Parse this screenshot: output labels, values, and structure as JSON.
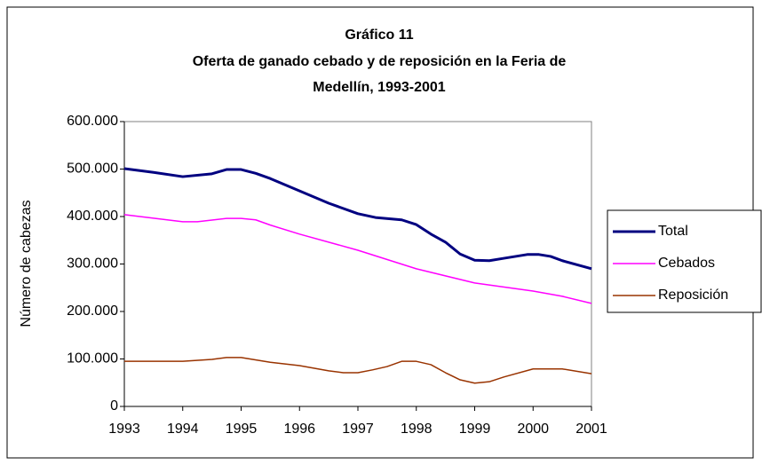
{
  "chart_data": {
    "type": "line",
    "title": [
      "Gráfico 11",
      "Oferta de ganado cebado y de reposición en la Feria de",
      "Medellín, 1993-2001"
    ],
    "ylabel": "Número de cabezas",
    "xlim": [
      1993,
      2001
    ],
    "xticks": [
      1993,
      1994,
      1995,
      1996,
      1997,
      1998,
      1999,
      2000,
      2001
    ],
    "ylim": [
      0,
      600000
    ],
    "yticks": [
      0,
      {
        "value": 100000,
        "label": "100.000"
      },
      {
        "value": 200000,
        "label": "200.000"
      },
      {
        "value": 300000,
        "label": "300.000"
      },
      {
        "value": 400000,
        "label": "400.000"
      },
      {
        "value": 500000,
        "label": "500.000"
      },
      {
        "value": 600000,
        "label": "600.000"
      }
    ],
    "legend": "right",
    "series": [
      {
        "name": "Total",
        "color": "#000080",
        "x": [
          1993,
          1993.5,
          1994,
          1994.5,
          1994.75,
          1995,
          1995.25,
          1995.5,
          1996,
          1996.5,
          1997,
          1997.3,
          1997.75,
          1998,
          1998.25,
          1998.5,
          1998.75,
          1999,
          1999.25,
          1999.5,
          1999.9,
          2000.1,
          2000.3,
          2000.5,
          2001
        ],
        "values": [
          501000,
          493000,
          484000,
          490000,
          499000,
          499000,
          491000,
          480000,
          454000,
          428000,
          406000,
          398000,
          393000,
          383000,
          363000,
          346000,
          321000,
          308000,
          307000,
          312000,
          320000,
          320000,
          316000,
          307000,
          290000
        ]
      },
      {
        "name": "Cebados",
        "color": "#ff00ff",
        "x": [
          1993,
          1994,
          1994.25,
          1994.75,
          1995,
          1995.25,
          1995.5,
          1996,
          1997,
          1998,
          1999,
          2000,
          2000.5,
          2001
        ],
        "values": [
          404000,
          389000,
          389000,
          396000,
          396000,
          393000,
          382000,
          363000,
          329000,
          290000,
          260000,
          243000,
          232000,
          217000
        ]
      },
      {
        "name": "Reposición",
        "color": "#993300",
        "x": [
          1993,
          1994,
          1994.5,
          1994.75,
          1995,
          1995.5,
          1996,
          1996.5,
          1996.75,
          1997,
          1997.25,
          1997.5,
          1997.75,
          1998,
          1998.25,
          1998.5,
          1998.75,
          1999,
          1999.25,
          1999.5,
          2000,
          2000.5,
          2001
        ],
        "values": [
          95000,
          95000,
          99000,
          103000,
          103000,
          93000,
          86000,
          75000,
          71000,
          71000,
          77000,
          84000,
          95000,
          95000,
          88000,
          71000,
          56000,
          49000,
          52000,
          62000,
          79000,
          79000,
          69000
        ]
      }
    ]
  }
}
